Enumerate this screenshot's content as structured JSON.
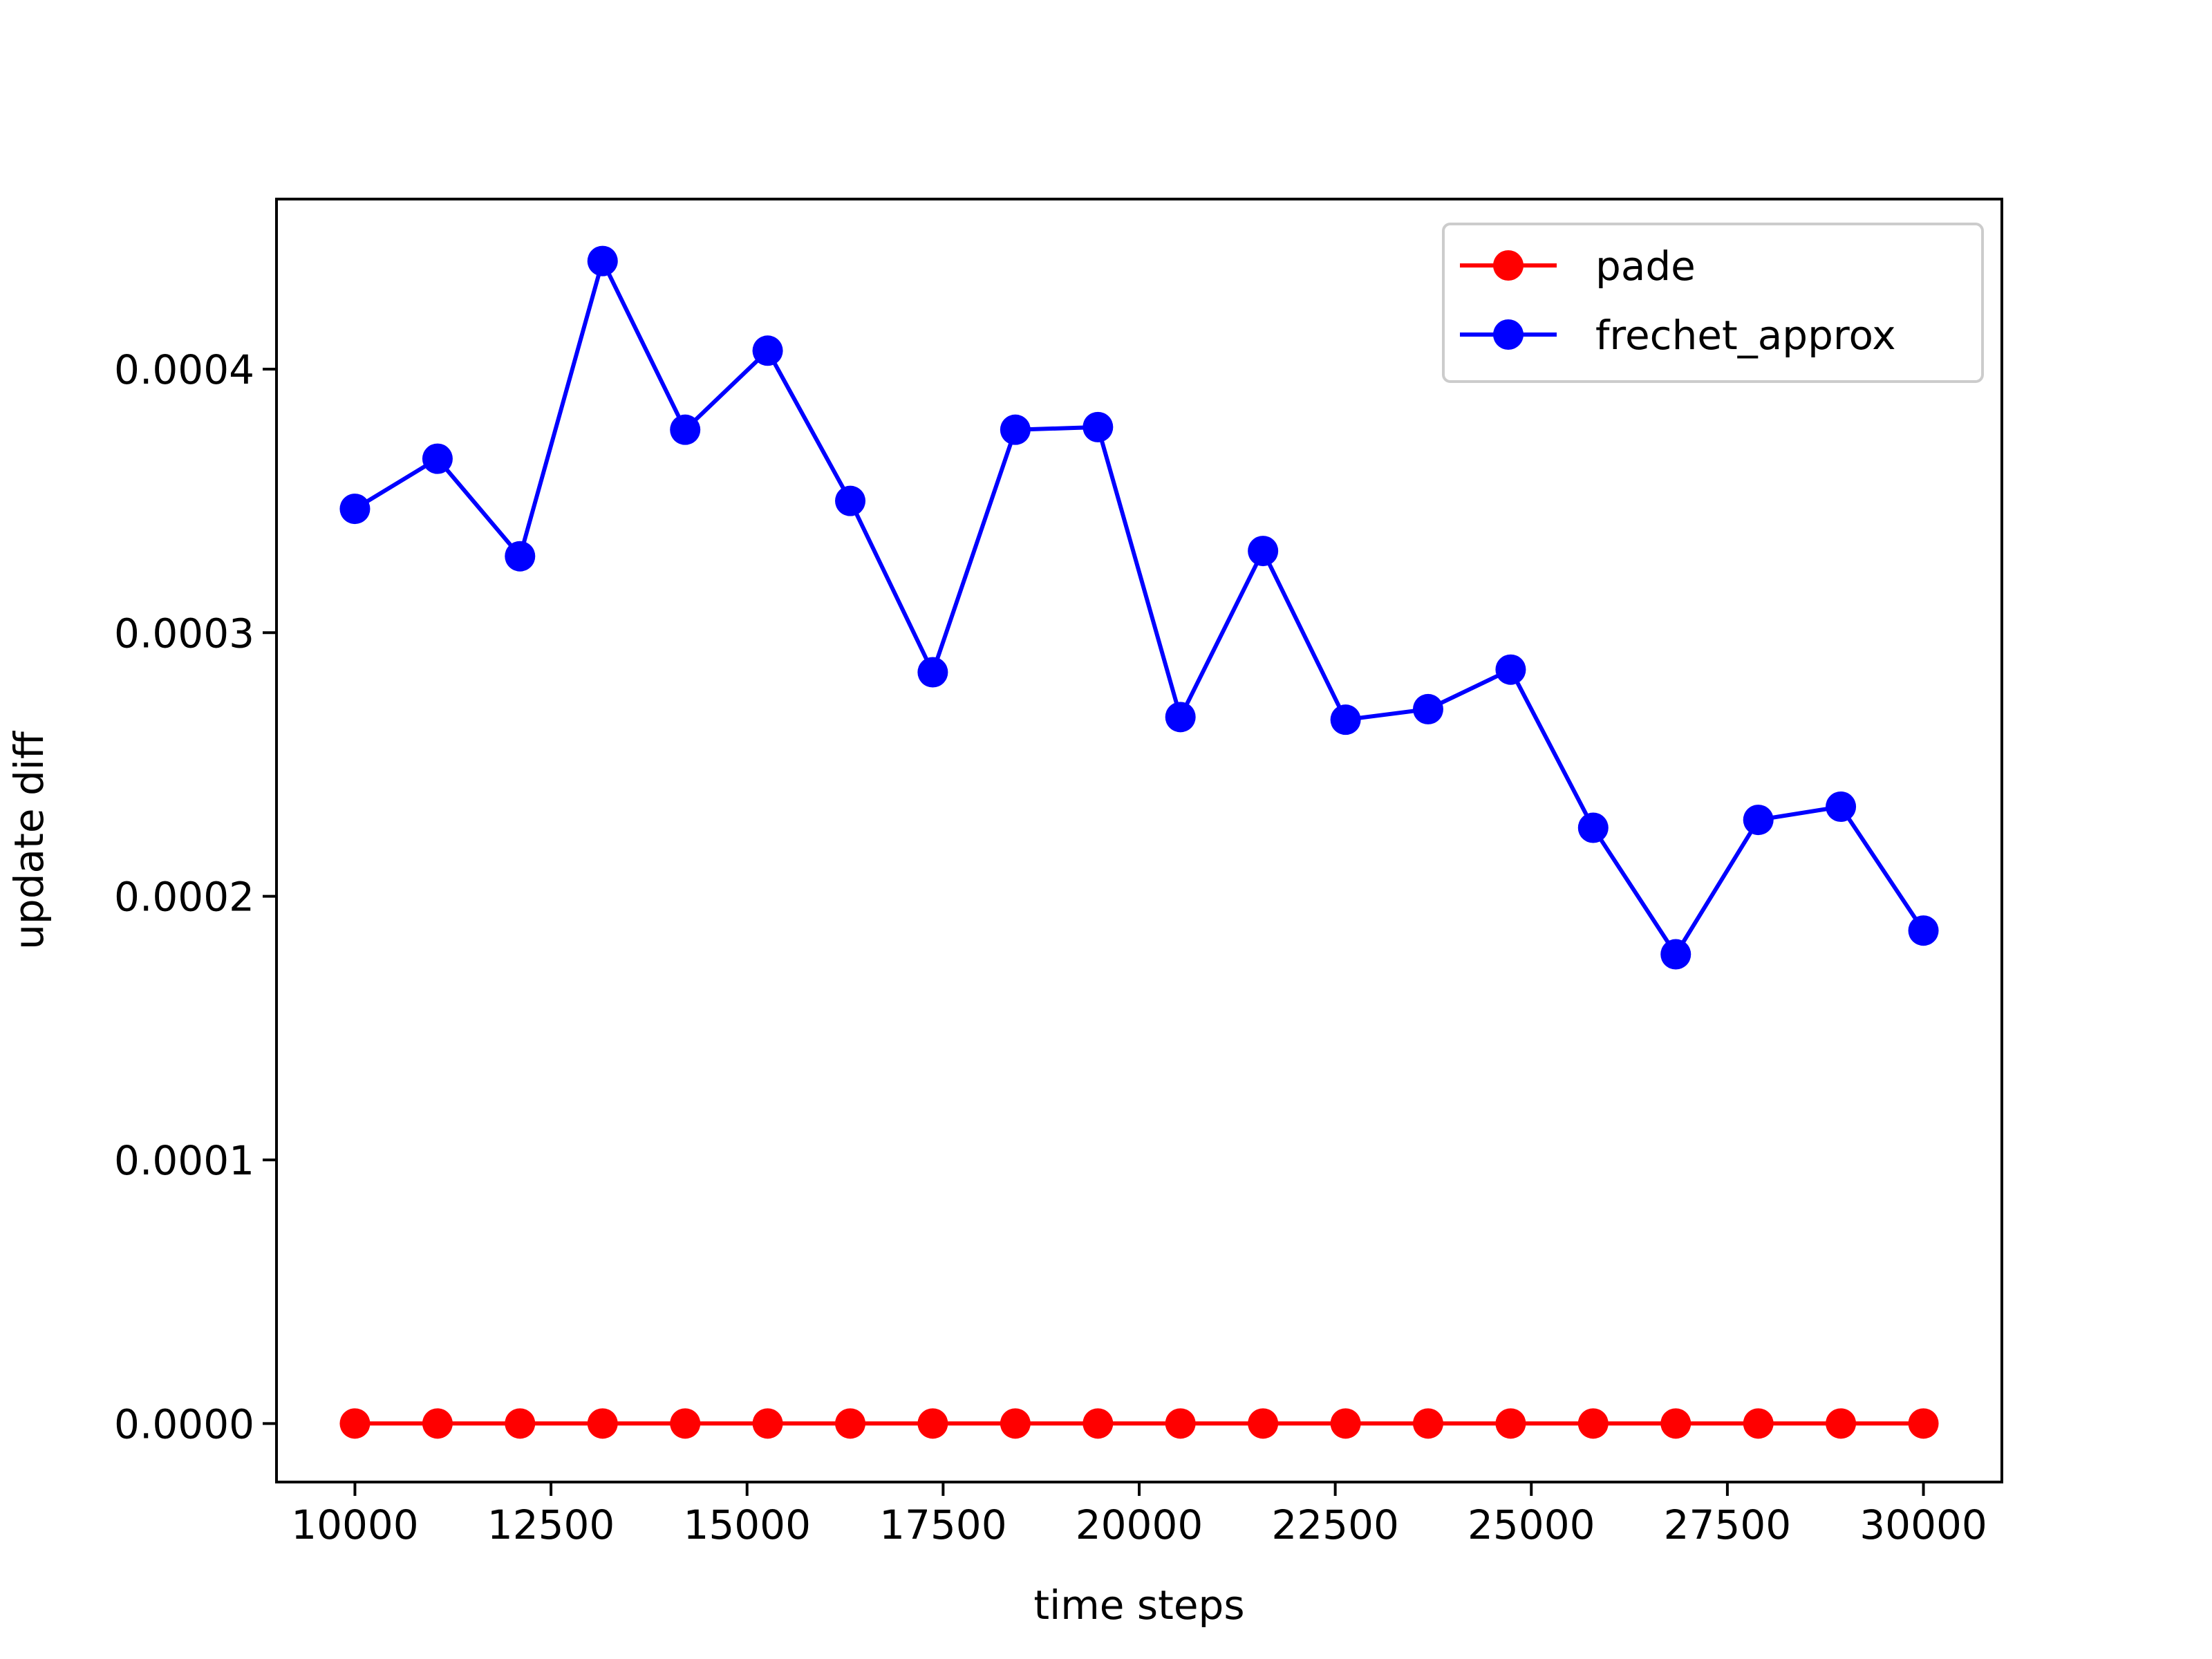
{
  "chart_data": {
    "type": "line",
    "title": "",
    "xlabel": "time steps",
    "ylabel": "update diff",
    "xlim": [
      9000,
      31000
    ],
    "ylim": [
      -2.22e-05,
      0.0004645
    ],
    "xticks": [
      10000,
      12500,
      15000,
      17500,
      20000,
      22500,
      25000,
      27500,
      30000
    ],
    "xtick_labels": [
      "10000",
      "12500",
      "15000",
      "17500",
      "20000",
      "22500",
      "25000",
      "27500",
      "30000"
    ],
    "yticks": [
      0.0,
      0.0001,
      0.0002,
      0.0003,
      0.0004
    ],
    "ytick_labels": [
      "0.0000",
      "0.0001",
      "0.0002",
      "0.0003",
      "0.0004"
    ],
    "grid": false,
    "legend_position": "top-right",
    "x": [
      10000,
      11053,
      12105,
      13158,
      14211,
      15263,
      16316,
      17368,
      18421,
      19474,
      20526,
      21579,
      22632,
      23684,
      24737,
      25789,
      26842,
      27895,
      28947,
      30000
    ],
    "series": [
      {
        "name": "pade",
        "color": "#ff0000",
        "values": [
          0.0,
          0.0,
          0.0,
          0.0,
          0.0,
          0.0,
          0.0,
          0.0,
          0.0,
          0.0,
          0.0,
          0.0,
          0.0,
          0.0,
          0.0,
          0.0,
          0.0,
          0.0,
          0.0,
          0.0
        ]
      },
      {
        "name": "frechet_approx",
        "color": "#0000ff",
        "values": [
          0.000347,
          0.000366,
          0.000329,
          0.000441,
          0.000377,
          0.000407,
          0.00035,
          0.000285,
          0.000377,
          0.000378,
          0.000268,
          0.000331,
          0.000267,
          0.000271,
          0.000286,
          0.000226,
          0.000178,
          0.000229,
          0.000234,
          0.000187
        ]
      }
    ]
  }
}
